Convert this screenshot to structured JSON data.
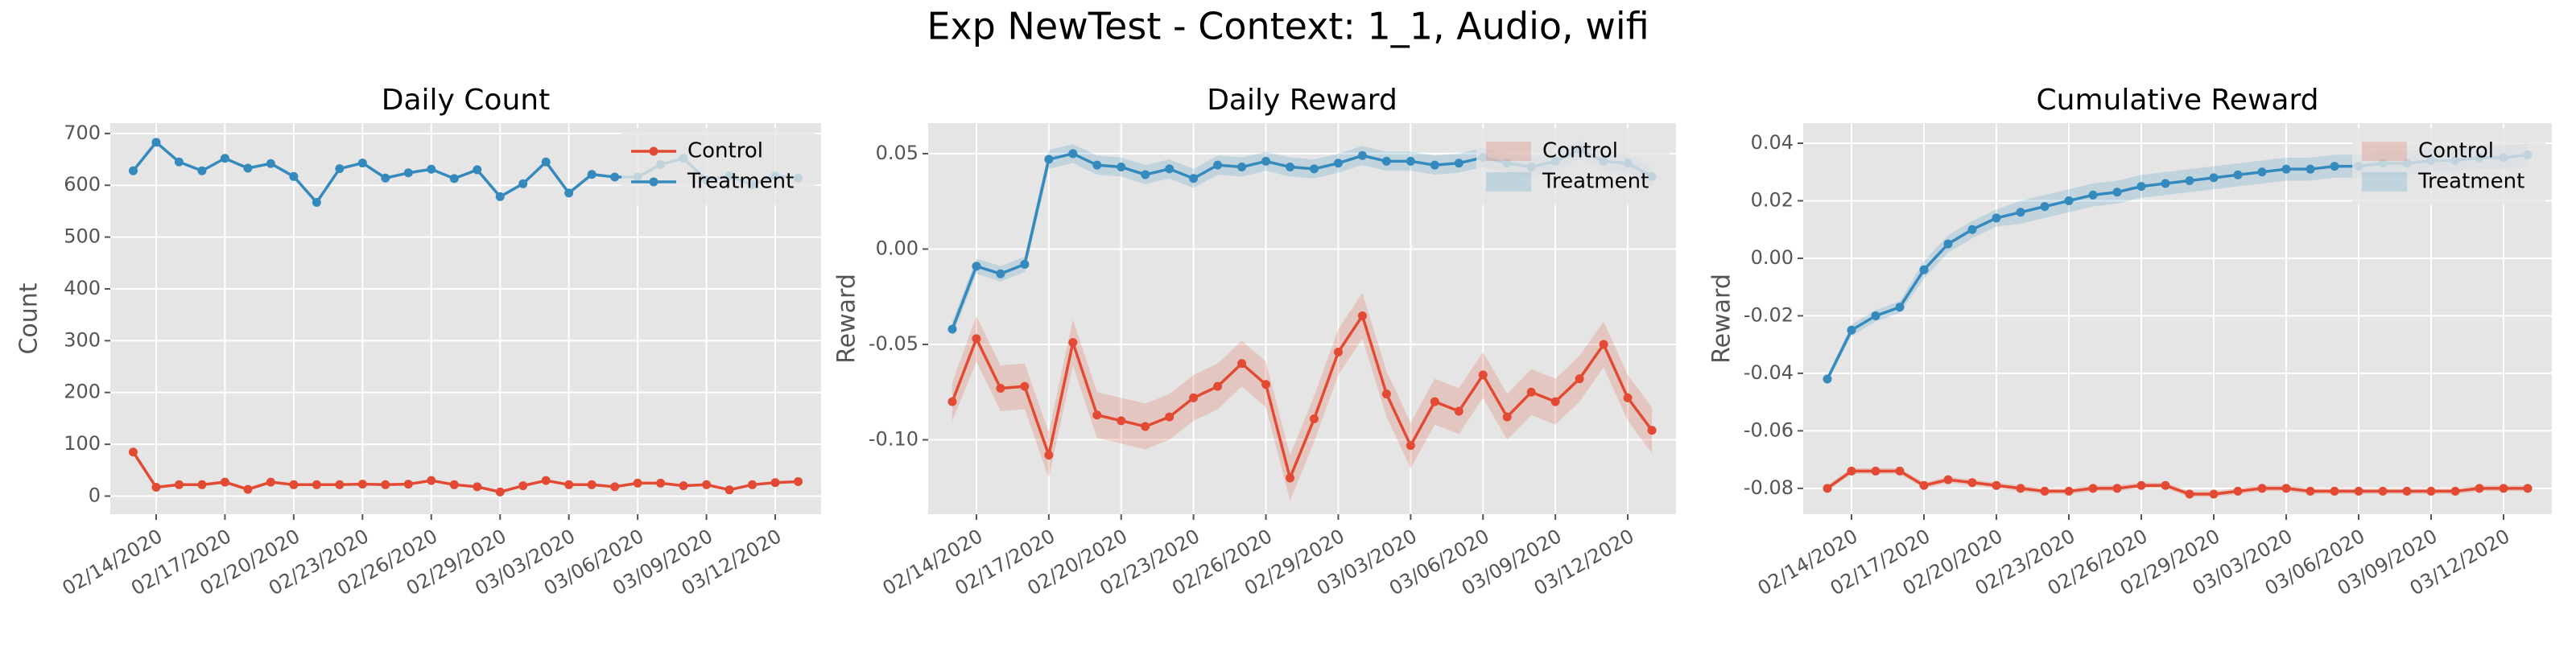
{
  "title": "Exp NewTest - Context: 1_1, Audio, wifi",
  "chart_data": [
    {
      "type": "line",
      "title": "Daily Count",
      "ylabel": "Count",
      "grid": true,
      "legend": "upper right",
      "x": [
        "02/13/2020",
        "02/14/2020",
        "02/15/2020",
        "02/16/2020",
        "02/17/2020",
        "02/18/2020",
        "02/19/2020",
        "02/20/2020",
        "02/21/2020",
        "02/22/2020",
        "02/23/2020",
        "02/24/2020",
        "02/25/2020",
        "02/26/2020",
        "02/27/2020",
        "02/28/2020",
        "02/29/2020",
        "03/01/2020",
        "03/02/2020",
        "03/03/2020",
        "03/04/2020",
        "03/05/2020",
        "03/06/2020",
        "03/07/2020",
        "03/08/2020",
        "03/09/2020",
        "03/10/2020",
        "03/11/2020",
        "03/12/2020",
        "03/13/2020"
      ],
      "xlim": [
        "02/12/2020",
        "03/14/2020"
      ],
      "xticks": [
        "02/14/2020",
        "02/17/2020",
        "02/20/2020",
        "02/23/2020",
        "02/26/2020",
        "02/29/2020",
        "03/03/2020",
        "03/06/2020",
        "03/09/2020",
        "03/12/2020"
      ],
      "ylim": [
        -35,
        720
      ],
      "yticks": [
        0,
        100,
        200,
        300,
        400,
        500,
        600,
        700
      ],
      "series": [
        {
          "name": "Control",
          "color": "#E24A33",
          "values": [
            85,
            17,
            22,
            22,
            27,
            13,
            27,
            22,
            22,
            22,
            23,
            22,
            23,
            30,
            22,
            18,
            8,
            20,
            30,
            22,
            22,
            18,
            25,
            25,
            20,
            22,
            12,
            22,
            26,
            28
          ]
        },
        {
          "name": "Treatment",
          "color": "#348ABD",
          "values": [
            628,
            683,
            645,
            628,
            652,
            633,
            642,
            617,
            567,
            632,
            643,
            614,
            624,
            631,
            613,
            630,
            578,
            603,
            645,
            585,
            621,
            616,
            616,
            640,
            652,
            610,
            618,
            601,
            618,
            614
          ]
        }
      ]
    },
    {
      "type": "line",
      "title": "Daily Reward",
      "ylabel": "Reward",
      "grid": true,
      "legend": "upper right",
      "x": [
        "02/13/2020",
        "02/14/2020",
        "02/15/2020",
        "02/16/2020",
        "02/17/2020",
        "02/18/2020",
        "02/19/2020",
        "02/20/2020",
        "02/21/2020",
        "02/22/2020",
        "02/23/2020",
        "02/24/2020",
        "02/25/2020",
        "02/26/2020",
        "02/27/2020",
        "02/28/2020",
        "02/29/2020",
        "03/01/2020",
        "03/02/2020",
        "03/03/2020",
        "03/04/2020",
        "03/05/2020",
        "03/06/2020",
        "03/07/2020",
        "03/08/2020",
        "03/09/2020",
        "03/10/2020",
        "03/11/2020",
        "03/12/2020",
        "03/13/2020"
      ],
      "xlim": [
        "02/12/2020",
        "03/14/2020"
      ],
      "xticks": [
        "02/14/2020",
        "02/17/2020",
        "02/20/2020",
        "02/23/2020",
        "02/26/2020",
        "02/29/2020",
        "03/03/2020",
        "03/06/2020",
        "03/09/2020",
        "03/12/2020"
      ],
      "ylim": [
        -0.139,
        0.066
      ],
      "yticks": [
        {
          "value": -0.1,
          "label": "-0.10"
        },
        -0.05,
        {
          "value": 0,
          "label": "0.00"
        },
        0.05
      ],
      "series": [
        {
          "name": "Control",
          "color": "#E24A33",
          "values": [
            -0.08,
            -0.047,
            -0.073,
            -0.072,
            -0.108,
            -0.049,
            -0.087,
            -0.09,
            -0.093,
            -0.088,
            -0.078,
            -0.072,
            -0.06,
            -0.071,
            -0.12,
            -0.089,
            -0.054,
            -0.035,
            -0.076,
            -0.103,
            -0.08,
            -0.085,
            -0.066,
            -0.088,
            -0.075,
            -0.08,
            -0.068,
            -0.05,
            -0.078,
            -0.095
          ],
          "error": [
            0.01,
            0.012,
            0.012,
            0.012,
            0.012,
            0.012,
            0.012,
            0.012,
            0.012,
            0.012,
            0.012,
            0.012,
            0.012,
            0.012,
            0.012,
            0.012,
            0.012,
            0.012,
            0.012,
            0.012,
            0.012,
            0.012,
            0.012,
            0.012,
            0.012,
            0.012,
            0.012,
            0.012,
            0.012,
            0.012
          ]
        },
        {
          "name": "Treatment",
          "color": "#348ABD",
          "values": [
            -0.042,
            -0.009,
            -0.013,
            -0.008,
            0.047,
            0.05,
            0.044,
            0.043,
            0.039,
            0.042,
            0.037,
            0.044,
            0.043,
            0.046,
            0.043,
            0.042,
            0.045,
            0.049,
            0.046,
            0.046,
            0.044,
            0.045,
            0.048,
            0.045,
            0.043,
            0.046,
            0.052,
            0.046,
            0.045,
            0.038
          ],
          "error": [
            0.004,
            0.004,
            0.004,
            0.004,
            0.005,
            0.005,
            0.005,
            0.005,
            0.005,
            0.005,
            0.005,
            0.005,
            0.005,
            0.005,
            0.005,
            0.005,
            0.005,
            0.005,
            0.005,
            0.005,
            0.005,
            0.005,
            0.005,
            0.005,
            0.005,
            0.005,
            0.005,
            0.005,
            0.005,
            0.005
          ]
        }
      ]
    },
    {
      "type": "line",
      "title": "Cumulative Reward",
      "ylabel": "Reward",
      "grid": true,
      "legend": "upper right",
      "x": [
        "02/13/2020",
        "02/14/2020",
        "02/15/2020",
        "02/16/2020",
        "02/17/2020",
        "02/18/2020",
        "02/19/2020",
        "02/20/2020",
        "02/21/2020",
        "02/22/2020",
        "02/23/2020",
        "02/24/2020",
        "02/25/2020",
        "02/26/2020",
        "02/27/2020",
        "02/28/2020",
        "02/29/2020",
        "03/01/2020",
        "03/02/2020",
        "03/03/2020",
        "03/04/2020",
        "03/05/2020",
        "03/06/2020",
        "03/07/2020",
        "03/08/2020",
        "03/09/2020",
        "03/10/2020",
        "03/11/2020",
        "03/12/2020",
        "03/13/2020"
      ],
      "xlim": [
        "02/12/2020",
        "03/14/2020"
      ],
      "xticks": [
        "02/14/2020",
        "02/17/2020",
        "02/20/2020",
        "02/23/2020",
        "02/26/2020",
        "02/29/2020",
        "03/03/2020",
        "03/06/2020",
        "03/09/2020",
        "03/12/2020"
      ],
      "ylim": [
        -0.089,
        0.047
      ],
      "yticks": [
        -0.08,
        -0.06,
        -0.04,
        -0.02,
        {
          "value": 0,
          "label": "0.00"
        },
        0.02,
        0.04
      ],
      "series": [
        {
          "name": "Control",
          "color": "#E24A33",
          "values": [
            -0.08,
            -0.074,
            -0.074,
            -0.074,
            -0.079,
            -0.077,
            -0.078,
            -0.079,
            -0.08,
            -0.081,
            -0.081,
            -0.08,
            -0.08,
            -0.079,
            -0.079,
            -0.082,
            -0.082,
            -0.081,
            -0.08,
            -0.08,
            -0.081,
            -0.081,
            -0.081,
            -0.081,
            -0.081,
            -0.081,
            -0.081,
            -0.08,
            -0.08,
            -0.08
          ],
          "error": [
            0.001,
            0.001,
            0.001,
            0.001,
            0.001,
            0.001,
            0.001,
            0.001,
            0.001,
            0.001,
            0.001,
            0.001,
            0.001,
            0.001,
            0.001,
            0.001,
            0.001,
            0.001,
            0.001,
            0.001,
            0.001,
            0.001,
            0.001,
            0.001,
            0.001,
            0.001,
            0.001,
            0.001,
            0.001,
            0.001
          ]
        },
        {
          "name": "Treatment",
          "color": "#348ABD",
          "values": [
            -0.042,
            -0.025,
            -0.02,
            -0.017,
            -0.004,
            0.005,
            0.01,
            0.014,
            0.016,
            0.018,
            0.02,
            0.022,
            0.023,
            0.025,
            0.026,
            0.027,
            0.028,
            0.029,
            0.03,
            0.031,
            0.031,
            0.032,
            0.032,
            0.033,
            0.033,
            0.034,
            0.034,
            0.035,
            0.035,
            0.036
          ],
          "error": [
            0.001,
            0.002,
            0.002,
            0.002,
            0.003,
            0.003,
            0.003,
            0.003,
            0.004,
            0.004,
            0.004,
            0.004,
            0.004,
            0.004,
            0.004,
            0.004,
            0.004,
            0.004,
            0.004,
            0.004,
            0.004,
            0.004,
            0.004,
            0.004,
            0.004,
            0.004,
            0.004,
            0.004,
            0.004,
            0.004
          ]
        }
      ]
    }
  ]
}
